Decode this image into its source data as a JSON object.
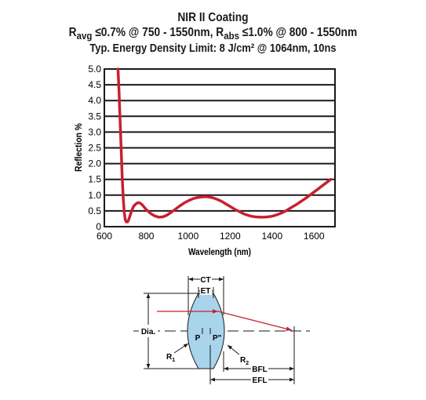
{
  "title": {
    "line1": "NIR II Coating",
    "line2_prefix": "R",
    "line2_sub1": "avg",
    "line2_mid": " ≤0.7% @ 750 - 1550nm, R",
    "line2_sub2": "abs",
    "line2_suffix": " ≤1.0% @ 800 - 1550nm",
    "line3": "Typ. Energy Density Limit: 8 J/cm² @ 1064nm, 10ns"
  },
  "chart_data": {
    "type": "line",
    "title": "NIR II Coating",
    "xlabel": "Wavelength (nm)",
    "ylabel": "Reflection %",
    "xlim": [
      600,
      1700
    ],
    "ylim": [
      0,
      5.0
    ],
    "x_ticks": [
      "600",
      "800",
      "1000",
      "1200",
      "1400",
      "1600"
    ],
    "x_tick_values": [
      600,
      800,
      1000,
      1200,
      1400,
      1600
    ],
    "y_ticks": [
      "0",
      "0.5",
      "1.0",
      "1.5",
      "2.0",
      "2.5",
      "3.0",
      "3.5",
      "4.0",
      "4.5",
      "5.0"
    ],
    "y_tick_values": [
      0,
      0.5,
      1.0,
      1.5,
      2.0,
      2.5,
      3.0,
      3.5,
      4.0,
      4.5,
      5.0
    ],
    "grid": "horizontal",
    "line_color": "#c8202f",
    "series": [
      {
        "x": [
          665,
          670,
          675,
          680,
          685,
          690,
          695,
          700,
          705,
          710,
          715,
          720,
          730,
          740,
          750,
          760,
          770,
          780,
          790,
          800,
          820,
          840,
          860,
          880,
          900,
          920,
          940,
          960,
          980,
          1000,
          1020,
          1040,
          1060,
          1080,
          1100,
          1120,
          1140,
          1160,
          1180,
          1200,
          1220,
          1240,
          1260,
          1280,
          1300,
          1320,
          1340,
          1360,
          1380,
          1400,
          1420,
          1440,
          1460,
          1480,
          1500,
          1520,
          1540,
          1560,
          1580,
          1600,
          1620,
          1640,
          1660,
          1680
        ],
        "y": [
          5.0,
          4.3,
          3.4,
          2.5,
          1.6,
          0.9,
          0.45,
          0.22,
          0.15,
          0.15,
          0.2,
          0.3,
          0.5,
          0.65,
          0.72,
          0.76,
          0.75,
          0.7,
          0.62,
          0.54,
          0.42,
          0.34,
          0.3,
          0.31,
          0.37,
          0.46,
          0.56,
          0.66,
          0.75,
          0.82,
          0.88,
          0.92,
          0.94,
          0.95,
          0.94,
          0.91,
          0.86,
          0.8,
          0.72,
          0.64,
          0.56,
          0.49,
          0.42,
          0.37,
          0.33,
          0.31,
          0.3,
          0.3,
          0.31,
          0.33,
          0.37,
          0.42,
          0.48,
          0.56,
          0.64,
          0.72,
          0.81,
          0.9,
          1.0,
          1.1,
          1.2,
          1.3,
          1.4,
          1.5
        ]
      }
    ]
  },
  "diagram": {
    "labels": {
      "ct": "CT",
      "et": "ET",
      "dia": "Dia.",
      "p": "P",
      "p_prime": "P\"",
      "r1": "R",
      "r1_sub": "1",
      "r2": "R",
      "r2_sub": "2",
      "bfl": "BFL",
      "efl": "EFL"
    },
    "colors": {
      "lens_fill": "#a8d4ec",
      "ray": "#c8202f",
      "ink": "#1a1a1a"
    }
  }
}
